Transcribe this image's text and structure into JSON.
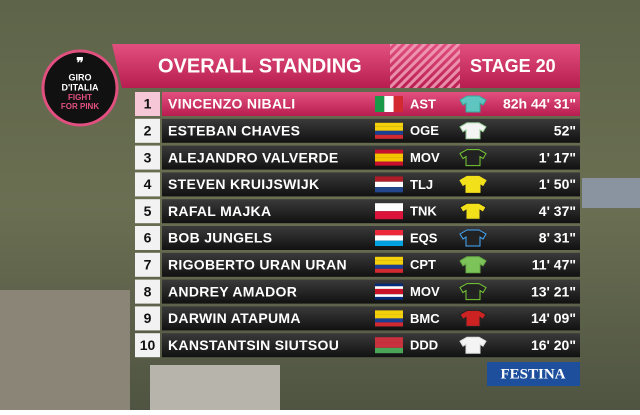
{
  "logo": {
    "line1": "GIRO",
    "line2": "D'ITALIA",
    "line3": "FIGHT",
    "line4": "FOR PINK"
  },
  "header": {
    "title": "OVERALL STANDING",
    "stage": "STAGE 20"
  },
  "table": {
    "rows": [
      {
        "rank": 1,
        "name": "VINCENZO NIBALI",
        "team": "AST",
        "time": "82h 44' 31\""
      },
      {
        "rank": 2,
        "name": "ESTEBAN CHAVES",
        "team": "OGE",
        "time": "52\""
      },
      {
        "rank": 3,
        "name": "ALEJANDRO VALVERDE",
        "team": "MOV",
        "time": "1' 17\""
      },
      {
        "rank": 4,
        "name": "STEVEN KRUIJSWIJK",
        "team": "TLJ",
        "time": "1' 50\""
      },
      {
        "rank": 5,
        "name": "RAFAL MAJKA",
        "team": "TNK",
        "time": "4' 37\""
      },
      {
        "rank": 6,
        "name": "BOB JUNGELS",
        "team": "EQS",
        "time": "8' 31\""
      },
      {
        "rank": 7,
        "name": "RIGOBERTO URAN URAN",
        "team": "CPT",
        "time": "11' 47\""
      },
      {
        "rank": 8,
        "name": "ANDREY AMADOR",
        "team": "MOV",
        "time": "13' 21\""
      },
      {
        "rank": 9,
        "name": "DARWIN ATAPUMA",
        "team": "BMC",
        "time": "14' 09\""
      },
      {
        "rank": 10,
        "name": "KANSTANTSIN SIUTSOU",
        "team": "DDD",
        "time": "16' 20\""
      }
    ]
  },
  "sponsor": "FESTINA"
}
